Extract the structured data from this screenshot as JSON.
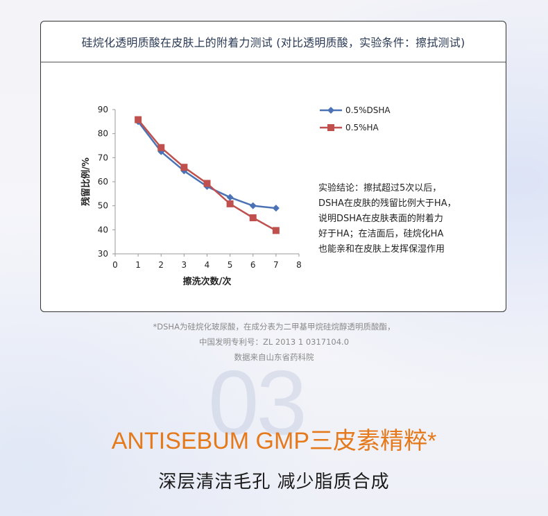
{
  "panel": {
    "title": "硅烷化透明质酸在皮肤上的附着力测试 (对比透明质酸，实验条件：擦拭测试)",
    "conclusion": [
      "实验结论：擦拭超过5次以后，",
      "DSHA在皮肤的残留比例大于HA，",
      "说明DSHA在皮肤表面的附着力",
      "好于HA；在洁面后，硅烷化HA",
      "也能亲和在皮肤上发挥保湿作用"
    ]
  },
  "chart_data": {
    "type": "line",
    "title": "",
    "xlabel": "擦洗次数/次",
    "ylabel": "残留比例/%",
    "x": [
      1,
      2,
      3,
      4,
      5,
      6,
      7
    ],
    "xlim": [
      0,
      8
    ],
    "ylim": [
      30,
      90
    ],
    "xticks": [
      "0",
      "1",
      "2",
      "3",
      "4",
      "5",
      "6",
      "7",
      "8"
    ],
    "yticks": [
      "30",
      "40",
      "50",
      "60",
      "70",
      "80",
      "90"
    ],
    "grid": false,
    "legend_position": "top-right",
    "series": [
      {
        "name": "0.5%DSHA",
        "color": "#4a72b5",
        "marker": "diamond",
        "values": [
          85,
          72.5,
          64.5,
          58,
          53.5,
          50,
          49
        ]
      },
      {
        "name": "0.5%HA",
        "color": "#c0504d",
        "marker": "square",
        "values": [
          85.8,
          74.2,
          66,
          59.3,
          50.8,
          45,
          39.7
        ]
      }
    ]
  },
  "footnotes": [
    "*DSHA为硅烷化玻尿酸，在成分表为二甲基甲烷硅烷醇透明质酸酯，",
    "中国发明专利号：ZL 2013 1 0317104.0",
    "数据来自山东省药科院"
  ],
  "section_number": "03",
  "headline": "ANTISEBUM GMP三皮素精粹*",
  "subline": "深层清洁毛孔  减少脂质合成"
}
